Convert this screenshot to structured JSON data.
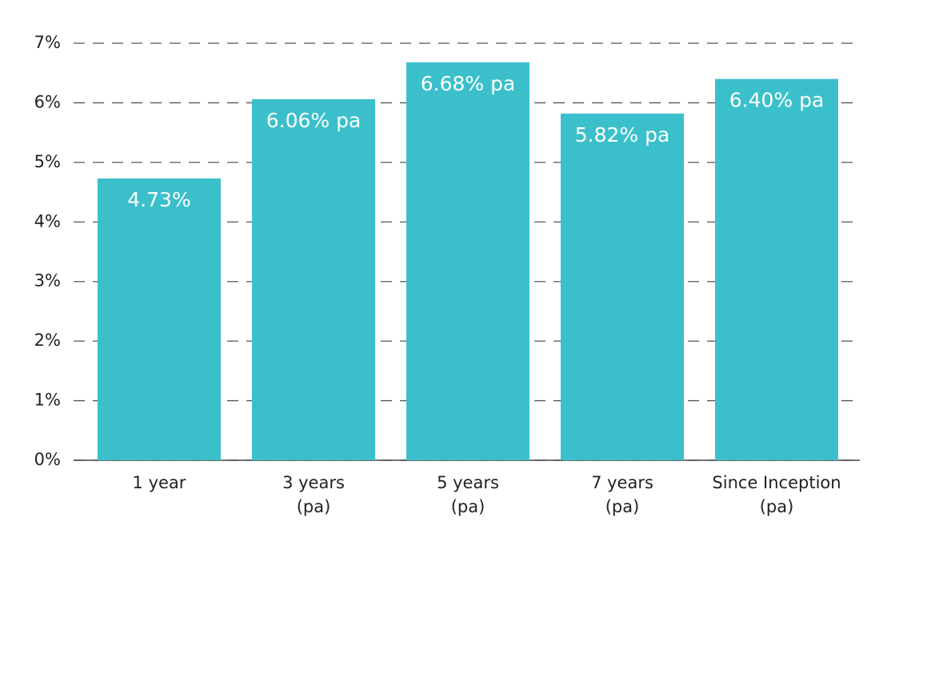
{
  "chart_data": {
    "type": "bar",
    "categories": [
      [
        "1 year"
      ],
      [
        "3 years",
        "(pa)"
      ],
      [
        "5 years",
        "(pa)"
      ],
      [
        "7 years",
        "(pa)"
      ],
      [
        "Since Inception",
        "(pa)"
      ]
    ],
    "values": [
      4.73,
      6.06,
      6.68,
      5.82,
      6.4
    ],
    "value_labels": [
      "4.73%",
      "6.06% pa",
      "6.68% pa",
      "5.82% pa",
      "6.40% pa"
    ],
    "color": "#3bc0cb",
    "ylim": [
      0,
      7
    ],
    "yticks": [
      {
        "value": 0,
        "label": "0%"
      },
      {
        "value": 1,
        "label": "1%"
      },
      {
        "value": 2,
        "label": "2%"
      },
      {
        "value": 3,
        "label": "3%"
      },
      {
        "value": 4,
        "label": "4%"
      },
      {
        "value": 5,
        "label": "5%"
      },
      {
        "value": 6,
        "label": "6%"
      },
      {
        "value": 7,
        "label": "7%"
      }
    ],
    "grid": true
  }
}
